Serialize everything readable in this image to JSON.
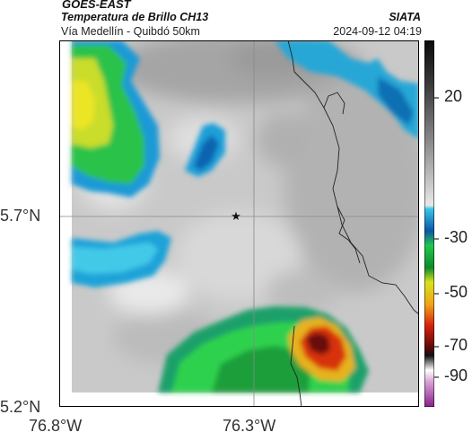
{
  "header": {
    "satellite": "GOES-EAST",
    "product": "Temperatura de Brillo CH13",
    "route": "Vía Medellín - Quibdó 50km",
    "institution": "SIATA",
    "timestamp": "2024-09-12 04:19"
  },
  "map": {
    "lat_ticks": [
      "5.7°N",
      "5.2°N"
    ],
    "lon_ticks": [
      "76.8°W",
      "76.3°W"
    ],
    "marker": "★",
    "background": "#ffffff"
  },
  "colorbar": {
    "labels": [
      "20",
      "-30",
      "-50",
      "-70",
      "-90"
    ],
    "unit": ""
  }
}
